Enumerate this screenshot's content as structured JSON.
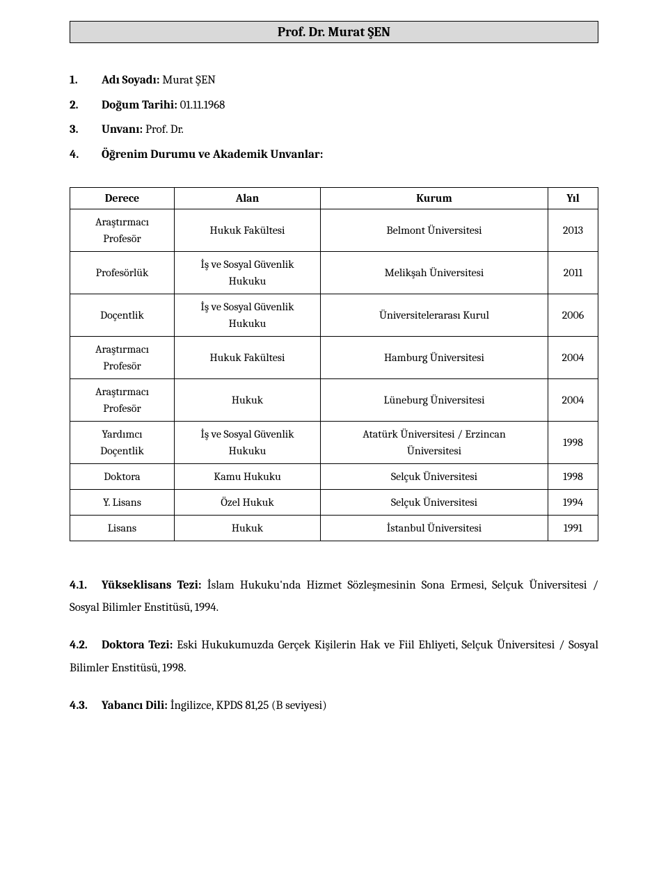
{
  "title": "Prof. Dr. Murat ŞEN",
  "info": [
    {
      "num": "1.",
      "label": "Adı Soyadı:",
      "value": " Murat ŞEN"
    },
    {
      "num": "2.",
      "label": "Doğum Tarihi:",
      "value": " 01.11.1968"
    },
    {
      "num": "3.",
      "label": "Unvanı:",
      "value": " Prof. Dr."
    },
    {
      "num": "4.",
      "label": "Öğrenim Durumu ve Akademik Unvanlar:",
      "value": ""
    }
  ],
  "table": {
    "headers": [
      "Derece",
      "Alan",
      "Kurum",
      "Yıl"
    ],
    "rows": [
      {
        "degree": "Araştırmacı\nProfesör",
        "field": "Hukuk Fakültesi",
        "inst": "Belmont Üniversitesi",
        "year": "2013"
      },
      {
        "degree": "Profesörlük",
        "field": "İş ve Sosyal Güvenlik\nHukuku",
        "inst": "Melikşah Üniversitesi",
        "year": "2011"
      },
      {
        "degree": "Doçentlik",
        "field": "İş ve Sosyal Güvenlik\nHukuku",
        "inst": "Üniversitelerarası Kurul",
        "year": "2006"
      },
      {
        "degree": "Araştırmacı\nProfesör",
        "field": "Hukuk Fakültesi",
        "inst": "Hamburg Üniversitesi",
        "year": "2004"
      },
      {
        "degree": "Araştırmacı\nProfesör",
        "field": "Hukuk",
        "inst": "Lüneburg Üniversitesi",
        "year": "2004"
      },
      {
        "degree": "Yardımcı\nDoçentlik",
        "field": "İş ve Sosyal Güvenlik\nHukuku",
        "inst": "Atatürk Üniversitesi / Erzincan\nÜniversitesi",
        "year": "1998"
      },
      {
        "degree": "Doktora",
        "field": "Kamu Hukuku",
        "inst": "Selçuk Üniversitesi",
        "year": "1998"
      },
      {
        "degree": "Y. Lisans",
        "field": "Özel Hukuk",
        "inst": "Selçuk Üniversitesi",
        "year": "1994"
      },
      {
        "degree": "Lisans",
        "field": "Hukuk",
        "inst": "İstanbul Üniversitesi",
        "year": "1991"
      }
    ]
  },
  "sections": [
    {
      "num": "4.1.",
      "label": "Yükseklisans Tezi:",
      "text": " İslam Hukuku'nda Hizmet Sözleşmesinin Sona Ermesi, Selçuk Üniversitesi / Sosyal Bilimler Enstitüsü, 1994."
    },
    {
      "num": "4.2.",
      "label": "Doktora Tezi:",
      "text": " Eski Hukukumuzda Gerçek Kişilerin Hak ve Fiil Ehliyeti, Selçuk Üniversitesi / Sosyal Bilimler Enstitüsü, 1998."
    },
    {
      "num": "4.3.",
      "label": "Yabancı Dili:",
      "text": " İngilizce, KPDS 81,25 (B seviyesi)"
    }
  ]
}
